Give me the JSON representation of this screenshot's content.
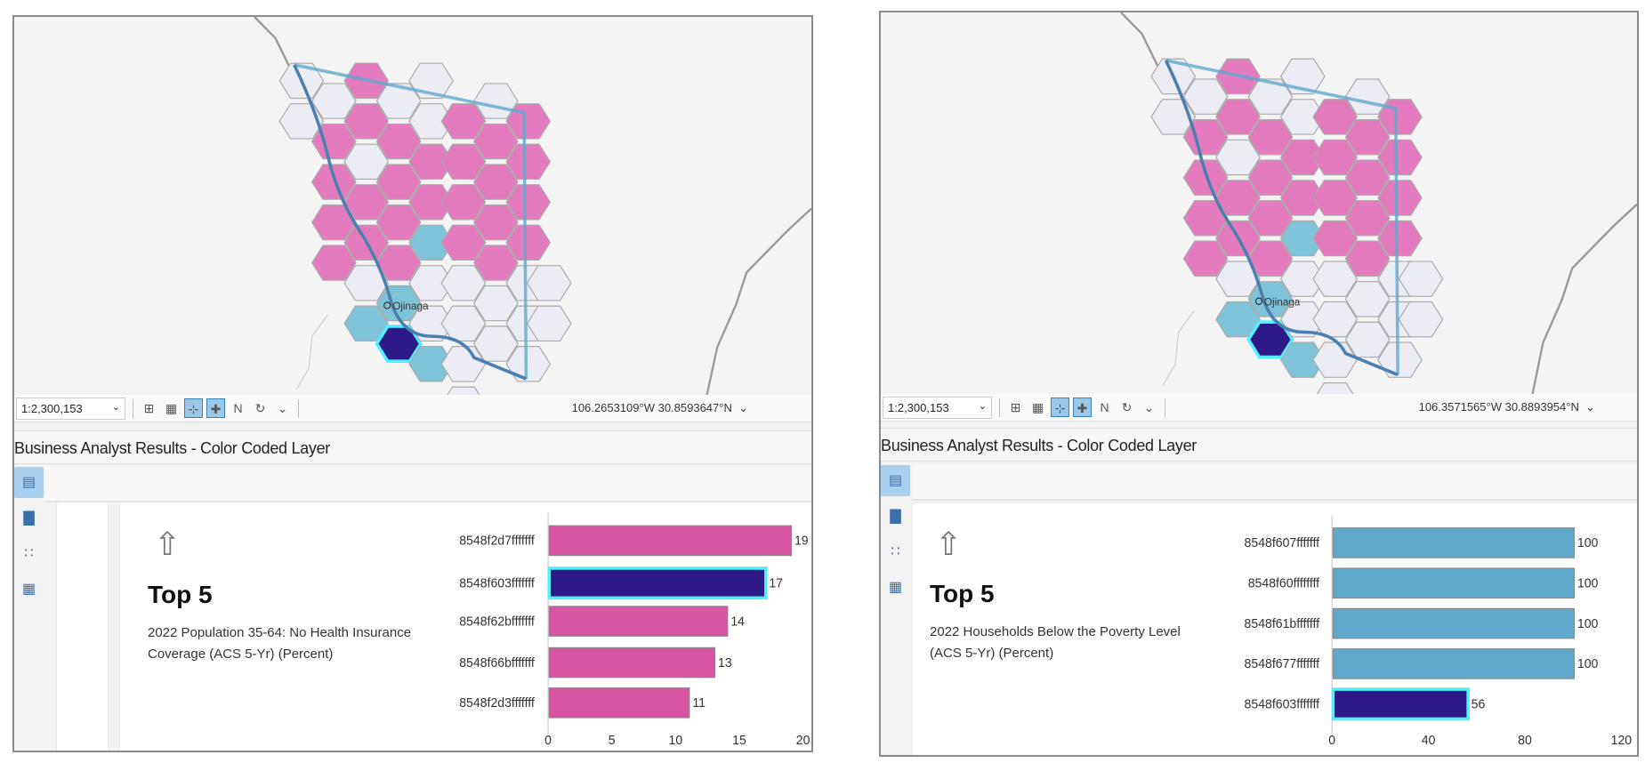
{
  "panels": [
    {
      "scale": "1:2,300,153",
      "coords": "106.2653109°W 30.8593647°N",
      "title": "Business Analyst Results - Color Coded Layer",
      "heading": "Top 5",
      "description": "2022 Population 35-64: No Health Insurance Coverage (ACS 5-Yr) (Percent)",
      "map_label": "Ojinaga"
    },
    {
      "scale": "1:2,300,153",
      "coords": "106.3571565°W 30.8893954°N",
      "title": "Business Analyst Results - Color Coded Layer",
      "heading": "Top 5",
      "description": "2022 Households Below the Poverty Level (ACS 5-Yr) (Percent)",
      "map_label": "Ojinaga"
    }
  ],
  "colors": {
    "pink": "#d755a3",
    "hex_pink": "#e57bbf",
    "hex_cyan": "#7ec3d8",
    "hex_white": "#ececf4",
    "selected": "#2e1a87",
    "highlight": "#4ff0ff",
    "blue": "#5fa9cd"
  },
  "chart_data": [
    {
      "type": "bar",
      "orientation": "horizontal",
      "categories": [
        "8548f2d7fffffff",
        "8548f603fffffff",
        "8548f62bfffffff",
        "8548f66bfffffff",
        "8548f2d3fffffff"
      ],
      "values": [
        19,
        17,
        14,
        13,
        11
      ],
      "highlighted": "8548f603fffffff",
      "xlim": [
        0,
        20
      ],
      "xticks": [
        0,
        5,
        10,
        15,
        20
      ],
      "bar_color": "#d755a3"
    },
    {
      "type": "bar",
      "orientation": "horizontal",
      "categories": [
        "8548f607fffffff",
        "8548f60ffffffff",
        "8548f61bfffffff",
        "8548f677fffffff",
        "8548f603fffffff"
      ],
      "values": [
        100,
        100,
        100,
        100,
        56
      ],
      "highlighted": "8548f603fffffff",
      "xlim": [
        0,
        120
      ],
      "xticks": [
        0,
        40,
        80,
        120
      ],
      "bar_color": "#5fa9cd"
    }
  ]
}
